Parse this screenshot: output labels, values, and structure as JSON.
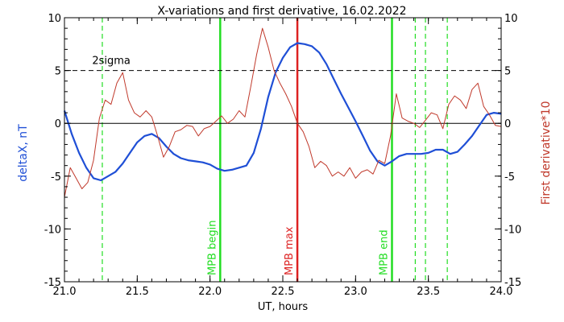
{
  "chart_data": {
    "type": "line",
    "title": "X-variations and first derivative, 16.02.2022",
    "xlabel": "UT, hours",
    "ylabel_left": "deltaX, nT",
    "ylabel_right": "First derivative*10",
    "xlim": [
      21.0,
      24.0
    ],
    "ylim": [
      -15,
      10
    ],
    "x_ticks": [
      21.0,
      21.5,
      22.0,
      22.5,
      23.0,
      23.5,
      24.0
    ],
    "x_tick_labels": [
      "21.0",
      "21.5",
      "22.0",
      "22.5",
      "23.0",
      "23.5",
      "24.0"
    ],
    "y_ticks": [
      -15,
      -10,
      -5,
      0,
      5,
      10
    ],
    "y_tick_labels": [
      "-15",
      "-10",
      "-5",
      "0",
      "5",
      "10"
    ],
    "threshold": {
      "label": "2sigma",
      "value": 5.0
    },
    "colors": {
      "deltaX": "#1f4fd6",
      "derivative": "#c0392b",
      "green": "#22dd22",
      "max": "#dd2222",
      "axis": "#000000"
    },
    "markers": [
      {
        "x": 22.07,
        "label": "MPB begin",
        "color": "#22dd22",
        "style": "solid"
      },
      {
        "x": 22.6,
        "label": "MPB max",
        "color": "#dd2222",
        "style": "solid"
      },
      {
        "x": 23.25,
        "label": "MPB end",
        "color": "#22dd22",
        "style": "solid"
      },
      {
        "x": 21.26,
        "label": "",
        "color": "#22dd22",
        "style": "dashed"
      },
      {
        "x": 23.41,
        "label": "",
        "color": "#22dd22",
        "style": "dashed"
      },
      {
        "x": 23.48,
        "label": "",
        "color": "#22dd22",
        "style": "dashed"
      },
      {
        "x": 23.63,
        "label": "",
        "color": "#22dd22",
        "style": "dashed"
      }
    ],
    "series": [
      {
        "key": "deltaX",
        "x": [
          21.0,
          21.05,
          21.1,
          21.15,
          21.2,
          21.25,
          21.3,
          21.35,
          21.4,
          21.45,
          21.5,
          21.55,
          21.6,
          21.65,
          21.7,
          21.75,
          21.8,
          21.85,
          21.9,
          21.95,
          22.0,
          22.05,
          22.1,
          22.15,
          22.2,
          22.25,
          22.3,
          22.35,
          22.4,
          22.45,
          22.5,
          22.55,
          22.6,
          22.65,
          22.7,
          22.75,
          22.8,
          22.85,
          22.9,
          22.95,
          23.0,
          23.05,
          23.1,
          23.15,
          23.2,
          23.25,
          23.3,
          23.35,
          23.4,
          23.45,
          23.5,
          23.55,
          23.6,
          23.65,
          23.7,
          23.75,
          23.8,
          23.85,
          23.9,
          23.95,
          24.0
        ],
        "values": [
          1.2,
          -1.0,
          -2.8,
          -4.2,
          -5.2,
          -5.4,
          -5.0,
          -4.6,
          -3.8,
          -2.8,
          -1.8,
          -1.2,
          -1.0,
          -1.4,
          -2.2,
          -2.9,
          -3.3,
          -3.5,
          -3.6,
          -3.7,
          -3.9,
          -4.3,
          -4.5,
          -4.4,
          -4.2,
          -4.0,
          -2.8,
          -0.5,
          2.5,
          4.8,
          6.2,
          7.2,
          7.6,
          7.5,
          7.3,
          6.7,
          5.6,
          4.2,
          2.8,
          1.5,
          0.2,
          -1.2,
          -2.6,
          -3.6,
          -4.0,
          -3.6,
          -3.1,
          -2.9,
          -2.9,
          -2.9,
          -2.8,
          -2.5,
          -2.5,
          -2.9,
          -2.7,
          -2.0,
          -1.2,
          -0.2,
          0.8,
          1.0,
          0.9
        ]
      },
      {
        "key": "derivative",
        "x": [
          21.0,
          21.04,
          21.08,
          21.12,
          21.16,
          21.2,
          21.24,
          21.28,
          21.32,
          21.36,
          21.4,
          21.44,
          21.48,
          21.52,
          21.56,
          21.6,
          21.64,
          21.68,
          21.72,
          21.76,
          21.8,
          21.84,
          21.88,
          21.92,
          21.96,
          22.0,
          22.04,
          22.08,
          22.12,
          22.16,
          22.2,
          22.24,
          22.28,
          22.32,
          22.36,
          22.4,
          22.44,
          22.48,
          22.52,
          22.56,
          22.6,
          22.64,
          22.68,
          22.72,
          22.76,
          22.8,
          22.84,
          22.88,
          22.92,
          22.96,
          23.0,
          23.04,
          23.08,
          23.12,
          23.16,
          23.2,
          23.24,
          23.28,
          23.32,
          23.36,
          23.4,
          23.44,
          23.48,
          23.52,
          23.56,
          23.6,
          23.64,
          23.68,
          23.72,
          23.76,
          23.8,
          23.84,
          23.88,
          23.92,
          23.96,
          24.0
        ],
        "values": [
          -7.0,
          -4.2,
          -5.2,
          -6.2,
          -5.6,
          -3.5,
          0.5,
          2.2,
          1.8,
          3.8,
          4.8,
          2.2,
          1.0,
          0.6,
          1.2,
          0.6,
          -1.2,
          -3.2,
          -2.2,
          -0.8,
          -0.6,
          -0.2,
          -0.3,
          -1.2,
          -0.5,
          -0.3,
          0.2,
          0.7,
          0.0,
          0.4,
          1.2,
          0.6,
          3.5,
          6.5,
          9.0,
          7.2,
          5.0,
          3.8,
          2.8,
          1.6,
          0.0,
          -0.8,
          -2.2,
          -4.2,
          -3.6,
          -4.0,
          -5.0,
          -4.6,
          -5.0,
          -4.2,
          -5.2,
          -4.6,
          -4.4,
          -4.8,
          -3.5,
          -3.8,
          -1.2,
          2.8,
          0.5,
          0.2,
          0.0,
          -0.4,
          0.3,
          1.0,
          0.8,
          -0.5,
          1.8,
          2.6,
          2.2,
          1.4,
          3.2,
          3.8,
          1.6,
          0.8,
          -0.2,
          -0.3
        ]
      }
    ]
  }
}
